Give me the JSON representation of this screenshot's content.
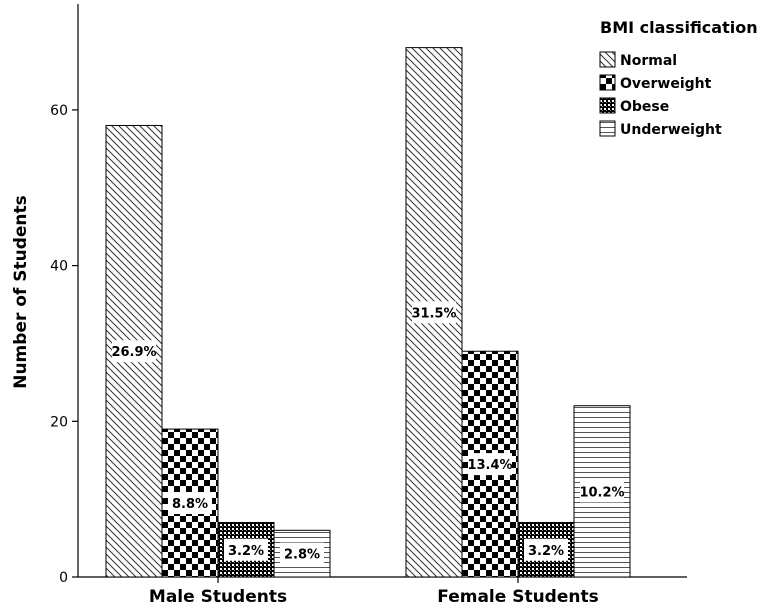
{
  "chart_data": {
    "type": "bar",
    "xlabel": "",
    "ylabel": "Number of Students",
    "ylim": [
      0,
      72
    ],
    "yticks": [
      0,
      20,
      40,
      60
    ],
    "categories": [
      "Male Students",
      "Female Students"
    ],
    "legend_title": "BMI classification",
    "legend_position": "top-right",
    "grid": false,
    "series": [
      {
        "name": "Normal",
        "pattern": "diagonal-hatch",
        "values": [
          58,
          68
        ],
        "labels": [
          "26.9%",
          "31.5%"
        ]
      },
      {
        "name": "Overweight",
        "pattern": "checkerboard",
        "values": [
          19,
          29
        ],
        "labels": [
          "8.8%",
          "13.4%"
        ]
      },
      {
        "name": "Obese",
        "pattern": "dense-check",
        "values": [
          7,
          7
        ],
        "labels": [
          "3.2%",
          "3.2%"
        ]
      },
      {
        "name": "Underweight",
        "pattern": "horizontal-lines",
        "values": [
          6,
          22
        ],
        "labels": [
          "2.8%",
          "10.2%"
        ]
      }
    ]
  }
}
